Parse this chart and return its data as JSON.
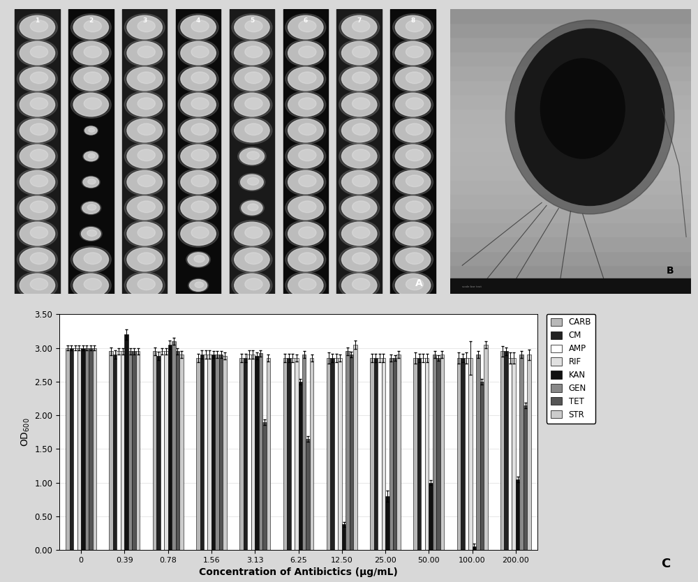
{
  "concentrations": [
    "0",
    "0.39",
    "0.78",
    "1.56",
    "3.13",
    "6.25",
    "12.50",
    "25.00",
    "50.00",
    "100.00",
    "200.00"
  ],
  "antibiotics": [
    "CARB",
    "CM",
    "AMP",
    "RIF",
    "KAN",
    "GEN",
    "TET",
    "STR"
  ],
  "bar_colors": [
    "#b8b8b8",
    "#222222",
    "#ffffff",
    "#e0e0e0",
    "#111111",
    "#888888",
    "#555555",
    "#cccccc"
  ],
  "bar_hatches": [
    "",
    "",
    "",
    "",
    "",
    "",
    "",
    ""
  ],
  "values": {
    "CARB": [
      3.0,
      2.95,
      2.95,
      2.85,
      2.85,
      2.85,
      2.85,
      2.85,
      2.85,
      2.85,
      2.95
    ],
    "CM": [
      3.0,
      2.9,
      2.88,
      2.9,
      2.85,
      2.85,
      2.85,
      2.85,
      2.85,
      2.85,
      2.95
    ],
    "AMP": [
      3.0,
      2.95,
      2.95,
      2.9,
      2.9,
      2.85,
      2.85,
      2.85,
      2.85,
      2.85,
      2.85
    ],
    "RIF": [
      3.0,
      2.95,
      2.95,
      2.9,
      2.9,
      2.85,
      2.85,
      2.85,
      2.85,
      2.85,
      2.85
    ],
    "KAN": [
      3.0,
      3.2,
      3.05,
      2.9,
      2.88,
      2.5,
      0.38,
      0.8,
      1.0,
      0.05,
      1.05
    ],
    "GEN": [
      3.0,
      2.95,
      3.1,
      2.9,
      2.92,
      2.9,
      2.95,
      2.85,
      2.9,
      2.9,
      2.9
    ],
    "TET": [
      3.0,
      2.95,
      2.95,
      2.9,
      1.9,
      1.65,
      2.9,
      2.85,
      2.85,
      2.5,
      2.15
    ],
    "STR": [
      3.0,
      2.95,
      2.9,
      2.88,
      2.85,
      2.85,
      3.05,
      2.9,
      2.9,
      3.05,
      2.9
    ]
  },
  "errors": {
    "CARB": [
      0.04,
      0.06,
      0.06,
      0.06,
      0.06,
      0.06,
      0.08,
      0.06,
      0.08,
      0.08,
      0.08
    ],
    "CM": [
      0.04,
      0.06,
      0.06,
      0.06,
      0.06,
      0.06,
      0.06,
      0.06,
      0.06,
      0.06,
      0.06
    ],
    "AMP": [
      0.04,
      0.05,
      0.05,
      0.06,
      0.06,
      0.06,
      0.06,
      0.06,
      0.06,
      0.08,
      0.08
    ],
    "RIF": [
      0.04,
      0.05,
      0.05,
      0.06,
      0.06,
      0.05,
      0.05,
      0.06,
      0.06,
      0.25,
      0.08
    ],
    "KAN": [
      0.04,
      0.08,
      0.06,
      0.05,
      0.05,
      0.04,
      0.04,
      0.08,
      0.04,
      0.04,
      0.04
    ],
    "GEN": [
      0.04,
      0.05,
      0.05,
      0.05,
      0.05,
      0.05,
      0.06,
      0.05,
      0.05,
      0.05,
      0.05
    ],
    "TET": [
      0.04,
      0.05,
      0.05,
      0.05,
      0.04,
      0.04,
      0.04,
      0.04,
      0.04,
      0.04,
      0.04
    ],
    "STR": [
      0.04,
      0.05,
      0.05,
      0.05,
      0.05,
      0.05,
      0.06,
      0.05,
      0.05,
      0.05,
      0.08
    ]
  },
  "ylabel": "OD$_{600}$",
  "xlabel": "Concentration of Antibictics (μg/mL)",
  "ylim": [
    0.0,
    3.5
  ],
  "yticks": [
    0.0,
    0.5,
    1.0,
    1.5,
    2.0,
    2.5,
    3.0,
    3.5
  ],
  "bg_color": "#d8d8d8",
  "panel_a_bg": "#080808",
  "panel_b_bg": "#aaaaaa",
  "chart_bg": "#ffffff",
  "outer_border": "#cccccc",
  "label_C": "C"
}
